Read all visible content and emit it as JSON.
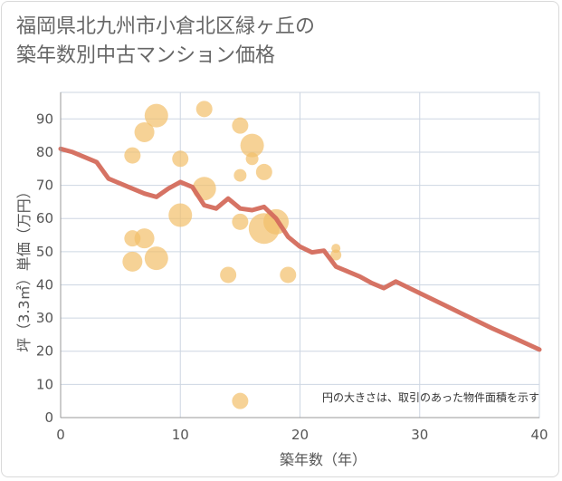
{
  "title_line1": "福岡県北九州市小倉北区緑ヶ丘の",
  "title_line2": "築年数別中古マンション価格",
  "chart_data": {
    "type": "scatter",
    "title": "福岡県北九州市小倉北区緑ヶ丘の築年数別中古マンション価格",
    "xlabel": "築年数（年）",
    "ylabel": "坪（3.3㎡）単価（万円）",
    "xlim": [
      0,
      40
    ],
    "ylim": [
      0,
      98
    ],
    "xticks": [
      0,
      10,
      20,
      30,
      40
    ],
    "yticks": [
      0,
      10,
      20,
      30,
      40,
      50,
      60,
      70,
      80,
      90
    ],
    "grid": true,
    "note": "円の大きさは、取引のあった物件面積を示す",
    "colors": {
      "bubble": "#f2bf6a",
      "line": "#d46c5c",
      "grid": "#cdd6e2"
    },
    "series": [
      {
        "type": "bubble",
        "points": [
          {
            "x": 6,
            "y": 79,
            "size": 9
          },
          {
            "x": 6,
            "y": 54,
            "size": 9
          },
          {
            "x": 6,
            "y": 47,
            "size": 11
          },
          {
            "x": 7,
            "y": 86,
            "size": 11
          },
          {
            "x": 7,
            "y": 54,
            "size": 11
          },
          {
            "x": 8,
            "y": 91,
            "size": 13
          },
          {
            "x": 8,
            "y": 48,
            "size": 13
          },
          {
            "x": 10,
            "y": 78,
            "size": 9
          },
          {
            "x": 10,
            "y": 61,
            "size": 13
          },
          {
            "x": 12,
            "y": 93,
            "size": 9
          },
          {
            "x": 12,
            "y": 69,
            "size": 13
          },
          {
            "x": 14,
            "y": 43,
            "size": 9
          },
          {
            "x": 15,
            "y": 88,
            "size": 9
          },
          {
            "x": 15,
            "y": 73,
            "size": 7
          },
          {
            "x": 15,
            "y": 59,
            "size": 9
          },
          {
            "x": 15,
            "y": 5,
            "size": 9
          },
          {
            "x": 16,
            "y": 82,
            "size": 13
          },
          {
            "x": 16,
            "y": 78,
            "size": 7
          },
          {
            "x": 17,
            "y": 74,
            "size": 9
          },
          {
            "x": 17,
            "y": 57,
            "size": 17
          },
          {
            "x": 18,
            "y": 59,
            "size": 14
          },
          {
            "x": 19,
            "y": 43,
            "size": 9
          },
          {
            "x": 23,
            "y": 51,
            "size": 5
          },
          {
            "x": 23,
            "y": 49,
            "size": 6
          }
        ]
      },
      {
        "type": "line",
        "x": [
          0,
          1,
          2,
          3,
          4,
          5,
          6,
          7,
          8,
          9,
          10,
          11,
          12,
          13,
          14,
          15,
          16,
          17,
          18,
          19,
          20,
          21,
          22,
          23,
          24,
          25,
          26,
          27,
          28,
          30,
          32,
          34,
          36,
          38,
          40
        ],
        "y": [
          81,
          80,
          78.5,
          77,
          72,
          70.5,
          69,
          67.5,
          66.5,
          69,
          71,
          69.5,
          64,
          63,
          66,
          63,
          62.5,
          63.5,
          60,
          54.5,
          51.5,
          49.8,
          50.3,
          45.5,
          44,
          42.5,
          40.5,
          39,
          41,
          37.5,
          34,
          30.5,
          27,
          23.8,
          20.5
        ]
      }
    ]
  }
}
